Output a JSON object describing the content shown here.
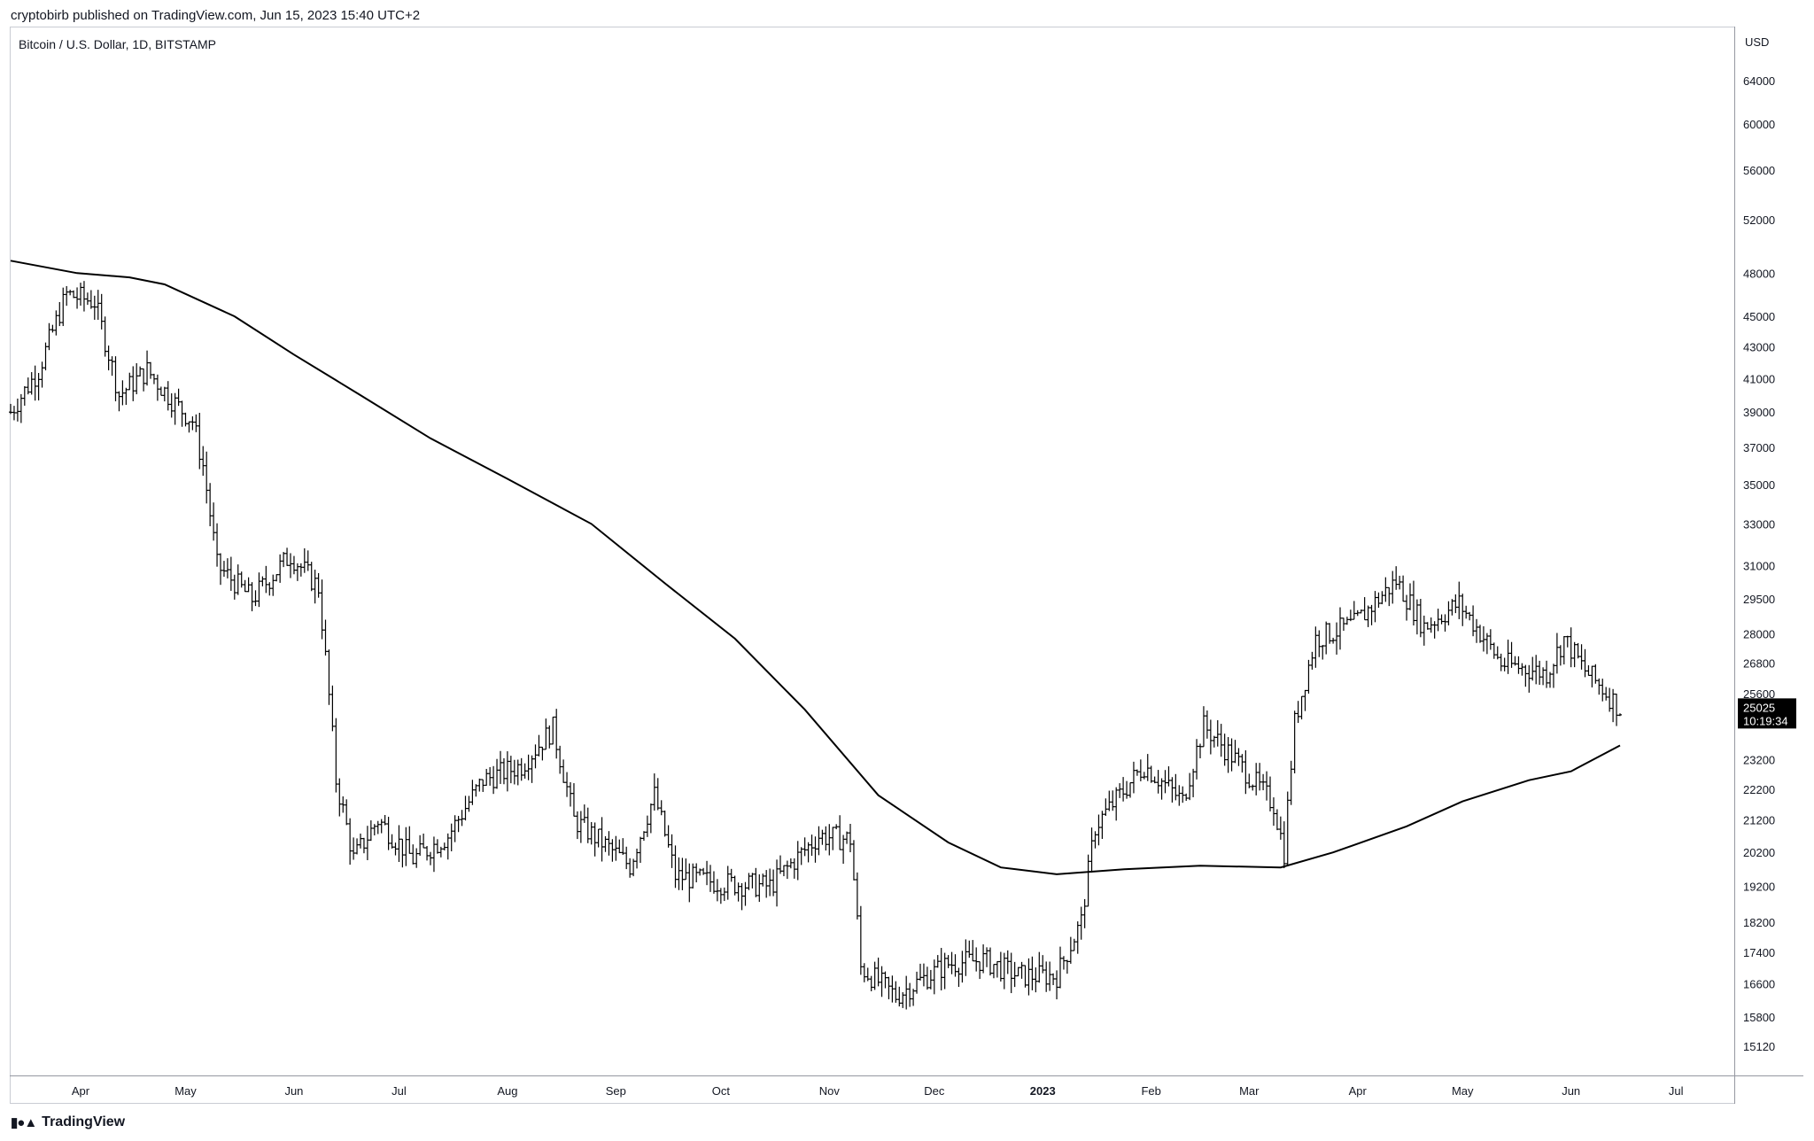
{
  "header": {
    "published_line": "cryptobirb published on TradingView.com, Jun 15, 2023 15:40 UTC+2"
  },
  "footer": {
    "logo_text": "TradingView",
    "logo_icon": "tradingview-logo-icon"
  },
  "chart_data": {
    "type": "ohlc",
    "title": "Bitcoin / U.S. Dollar, 1D, BITSTAMP",
    "currency": "USD",
    "scale": "log",
    "ylim": [
      14500,
      68000
    ],
    "y_ticks": [
      64000,
      60000,
      56000,
      52000,
      48000,
      45000,
      43000,
      41000,
      39000,
      37000,
      35000,
      33000,
      31000,
      29500,
      28000,
      26800,
      25600,
      23200,
      22200,
      21200,
      20200,
      19200,
      18200,
      17400,
      16600,
      15800,
      15120
    ],
    "x_ticks": [
      {
        "label": "Apr",
        "date": "2022-04-01"
      },
      {
        "label": "May",
        "date": "2022-05-01"
      },
      {
        "label": "Jun",
        "date": "2022-06-01"
      },
      {
        "label": "Jul",
        "date": "2022-07-01"
      },
      {
        "label": "Aug",
        "date": "2022-08-01"
      },
      {
        "label": "Sep",
        "date": "2022-09-01"
      },
      {
        "label": "Oct",
        "date": "2022-10-01"
      },
      {
        "label": "Nov",
        "date": "2022-11-01"
      },
      {
        "label": "Dec",
        "date": "2022-12-01"
      },
      {
        "label": "2023",
        "date": "2023-01-01",
        "bold": true
      },
      {
        "label": "Feb",
        "date": "2023-02-01"
      },
      {
        "label": "Mar",
        "date": "2023-03-01"
      },
      {
        "label": "Apr",
        "date": "2023-04-01"
      },
      {
        "label": "May",
        "date": "2023-05-01"
      },
      {
        "label": "Jun",
        "date": "2023-06-01"
      },
      {
        "label": "Jul",
        "date": "2023-07-01"
      }
    ],
    "last_price": {
      "value": 25025,
      "label": "25025",
      "countdown": "10:19:34",
      "bg_color": "#000000",
      "text_color": "#ffffff"
    },
    "bar_color": "#000000",
    "moving_average": {
      "color": "#000000",
      "points": [
        {
          "date": "2022-03-12",
          "value": 48900
        },
        {
          "date": "2022-03-31",
          "value": 48000
        },
        {
          "date": "2022-04-15",
          "value": 47700
        },
        {
          "date": "2022-04-25",
          "value": 47200
        },
        {
          "date": "2022-05-15",
          "value": 45000
        },
        {
          "date": "2022-06-01",
          "value": 42500
        },
        {
          "date": "2022-06-20",
          "value": 40000
        },
        {
          "date": "2022-07-10",
          "value": 37500
        },
        {
          "date": "2022-08-01",
          "value": 35300
        },
        {
          "date": "2022-08-25",
          "value": 33000
        },
        {
          "date": "2022-09-15",
          "value": 30200
        },
        {
          "date": "2022-10-05",
          "value": 27800
        },
        {
          "date": "2022-10-25",
          "value": 25000
        },
        {
          "date": "2022-11-15",
          "value": 22000
        },
        {
          "date": "2022-12-05",
          "value": 20500
        },
        {
          "date": "2022-12-20",
          "value": 19750
        },
        {
          "date": "2023-01-05",
          "value": 19550
        },
        {
          "date": "2023-01-25",
          "value": 19700
        },
        {
          "date": "2023-02-15",
          "value": 19800
        },
        {
          "date": "2023-03-10",
          "value": 19750
        },
        {
          "date": "2023-03-25",
          "value": 20200
        },
        {
          "date": "2023-04-15",
          "value": 21000
        },
        {
          "date": "2023-05-01",
          "value": 21800
        },
        {
          "date": "2023-05-20",
          "value": 22500
        },
        {
          "date": "2023-06-01",
          "value": 22800
        },
        {
          "date": "2023-06-15",
          "value": 23700
        }
      ]
    },
    "anchors": [
      {
        "date": "2022-03-12",
        "value": 39000
      },
      {
        "date": "2022-03-20",
        "value": 41500
      },
      {
        "date": "2022-03-28",
        "value": 46500
      },
      {
        "date": "2022-04-05",
        "value": 46000
      },
      {
        "date": "2022-04-12",
        "value": 40000
      },
      {
        "date": "2022-04-20",
        "value": 41500
      },
      {
        "date": "2022-04-28",
        "value": 39500
      },
      {
        "date": "2022-05-03",
        "value": 38500
      },
      {
        "date": "2022-05-06",
        "value": 36000
      },
      {
        "date": "2022-05-10",
        "value": 31000
      },
      {
        "date": "2022-05-20",
        "value": 29500
      },
      {
        "date": "2022-05-31",
        "value": 31500
      },
      {
        "date": "2022-06-08",
        "value": 30000
      },
      {
        "date": "2022-06-13",
        "value": 22500
      },
      {
        "date": "2022-06-18",
        "value": 20000
      },
      {
        "date": "2022-06-25",
        "value": 21200
      },
      {
        "date": "2022-07-05",
        "value": 20000
      },
      {
        "date": "2022-07-15",
        "value": 20700
      },
      {
        "date": "2022-07-25",
        "value": 22500
      },
      {
        "date": "2022-08-05",
        "value": 23000
      },
      {
        "date": "2022-08-14",
        "value": 24300
      },
      {
        "date": "2022-08-20",
        "value": 21200
      },
      {
        "date": "2022-09-05",
        "value": 19800
      },
      {
        "date": "2022-09-12",
        "value": 22000
      },
      {
        "date": "2022-09-18",
        "value": 19500
      },
      {
        "date": "2022-10-01",
        "value": 19300
      },
      {
        "date": "2022-10-15",
        "value": 19200
      },
      {
        "date": "2022-10-29",
        "value": 20700
      },
      {
        "date": "2022-11-07",
        "value": 20600
      },
      {
        "date": "2022-11-10",
        "value": 17000
      },
      {
        "date": "2022-11-20",
        "value": 16300
      },
      {
        "date": "2022-12-05",
        "value": 17100
      },
      {
        "date": "2022-12-15",
        "value": 17200
      },
      {
        "date": "2022-12-25",
        "value": 16800
      },
      {
        "date": "2023-01-05",
        "value": 16800
      },
      {
        "date": "2023-01-12",
        "value": 18200
      },
      {
        "date": "2023-01-16",
        "value": 21000
      },
      {
        "date": "2023-01-30",
        "value": 23000
      },
      {
        "date": "2023-02-10",
        "value": 21800
      },
      {
        "date": "2023-02-16",
        "value": 24400
      },
      {
        "date": "2023-02-25",
        "value": 23200
      },
      {
        "date": "2023-03-08",
        "value": 21700
      },
      {
        "date": "2023-03-11",
        "value": 20200
      },
      {
        "date": "2023-03-14",
        "value": 24500
      },
      {
        "date": "2023-03-20",
        "value": 27800
      },
      {
        "date": "2023-03-31",
        "value": 28400
      },
      {
        "date": "2023-04-12",
        "value": 30300
      },
      {
        "date": "2023-04-20",
        "value": 28300
      },
      {
        "date": "2023-04-30",
        "value": 29300
      },
      {
        "date": "2023-05-12",
        "value": 26800
      },
      {
        "date": "2023-05-25",
        "value": 26400
      },
      {
        "date": "2023-05-30",
        "value": 27800
      },
      {
        "date": "2023-06-05",
        "value": 26500
      },
      {
        "date": "2023-06-10",
        "value": 25800
      },
      {
        "date": "2023-06-15",
        "value": 25025
      }
    ]
  }
}
